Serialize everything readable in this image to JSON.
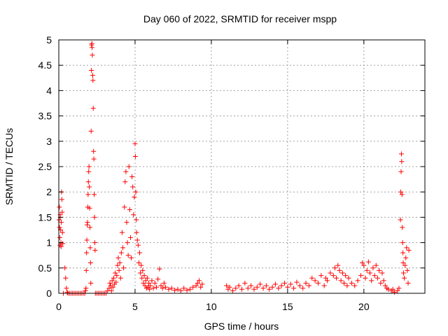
{
  "chart_data": {
    "type": "scatter",
    "title": "Day 060 of 2022, SRMTID for receiver mspp",
    "xlabel": "GPS time / hours",
    "ylabel": "SRMTID / TECUs",
    "xlim": [
      0,
      24
    ],
    "ylim": [
      0,
      5
    ],
    "x_ticks": [
      0,
      5,
      10,
      15,
      20
    ],
    "x_tick_labels": [
      "0",
      "5",
      "10",
      "15",
      "20"
    ],
    "y_ticks": [
      0,
      0.5,
      1,
      1.5,
      2,
      2.5,
      3,
      3.5,
      4,
      4.5,
      5
    ],
    "y_tick_labels": [
      "0",
      "0.5",
      "1",
      "1.5",
      "2",
      "2.5",
      "3",
      "3.5",
      "4",
      "4.5",
      "5"
    ],
    "grid": true,
    "marker": "plus",
    "color": "#ff0000",
    "series": [
      {
        "name": "SRMTID",
        "points": [
          [
            0.02,
            1.45
          ],
          [
            0.05,
            1.3
          ],
          [
            0.07,
            1.1
          ],
          [
            0.08,
            0.95
          ],
          [
            0.1,
            1.5
          ],
          [
            0.12,
            1.25
          ],
          [
            0.14,
            1.0
          ],
          [
            0.16,
            1.4
          ],
          [
            0.18,
            2.0
          ],
          [
            0.2,
            1.85
          ],
          [
            0.22,
            1.6
          ],
          [
            0.24,
            1.2
          ],
          [
            0.26,
            0.98
          ],
          [
            0.04,
            1.7
          ],
          [
            0.09,
            1.55
          ],
          [
            0.15,
            0.92
          ],
          [
            0.3,
            0.0
          ],
          [
            0.4,
            0.5
          ],
          [
            0.45,
            0.3
          ],
          [
            0.5,
            0.1
          ],
          [
            0.55,
            0.02
          ],
          [
            0.6,
            0.0
          ],
          [
            0.7,
            0.0
          ],
          [
            0.8,
            0.0
          ],
          [
            0.9,
            0.0
          ],
          [
            1.0,
            0.0
          ],
          [
            1.1,
            0.0
          ],
          [
            1.2,
            0.0
          ],
          [
            1.3,
            0.0
          ],
          [
            1.4,
            0.0
          ],
          [
            1.5,
            0.0
          ],
          [
            1.6,
            0.0
          ],
          [
            1.7,
            0.0
          ],
          [
            1.75,
            0.05
          ],
          [
            1.78,
            0.1
          ],
          [
            1.8,
            0.45
          ],
          [
            1.82,
            0.8
          ],
          [
            1.84,
            1.05
          ],
          [
            1.86,
            1.35
          ],
          [
            1.88,
            1.4
          ],
          [
            1.9,
            1.7
          ],
          [
            1.92,
            1.95
          ],
          [
            1.94,
            2.2
          ],
          [
            1.96,
            2.4
          ],
          [
            1.98,
            2.5
          ],
          [
            2.0,
            2.1
          ],
          [
            2.02,
            1.68
          ],
          [
            2.04,
            1.3
          ],
          [
            2.06,
            0.9
          ],
          [
            2.08,
            0.6
          ],
          [
            2.1,
            0.2
          ],
          [
            2.12,
            3.2
          ],
          [
            2.14,
            4.4
          ],
          [
            2.15,
            4.9
          ],
          [
            2.17,
            4.93
          ],
          [
            2.18,
            4.85
          ],
          [
            2.2,
            4.7
          ],
          [
            2.22,
            4.3
          ],
          [
            2.24,
            4.2
          ],
          [
            2.26,
            3.65
          ],
          [
            2.28,
            2.8
          ],
          [
            2.3,
            2.65
          ],
          [
            2.32,
            1.95
          ],
          [
            2.34,
            1.5
          ],
          [
            2.36,
            1.0
          ],
          [
            2.38,
            0.85
          ],
          [
            2.4,
            0.0
          ],
          [
            2.5,
            0.0
          ],
          [
            2.6,
            0.0
          ],
          [
            2.7,
            0.0
          ],
          [
            2.8,
            0.0
          ],
          [
            2.9,
            0.0
          ],
          [
            3.0,
            0.0
          ],
          [
            3.1,
            0.0
          ],
          [
            3.2,
            0.05
          ],
          [
            3.3,
            0.1
          ],
          [
            3.35,
            0.2
          ],
          [
            3.4,
            0.15
          ],
          [
            3.45,
            0.05
          ],
          [
            3.5,
            0.25
          ],
          [
            3.55,
            0.12
          ],
          [
            3.6,
            0.3
          ],
          [
            3.65,
            0.18
          ],
          [
            3.7,
            0.4
          ],
          [
            3.75,
            0.22
          ],
          [
            3.8,
            0.35
          ],
          [
            3.85,
            0.55
          ],
          [
            3.9,
            0.7
          ],
          [
            3.95,
            0.45
          ],
          [
            4.0,
            0.6
          ],
          [
            4.05,
            0.3
          ],
          [
            4.1,
            0.8
          ],
          [
            4.15,
            1.2
          ],
          [
            4.2,
            0.9
          ],
          [
            4.25,
            0.5
          ],
          [
            4.3,
            1.7
          ],
          [
            4.35,
            2.2
          ],
          [
            4.4,
            2.4
          ],
          [
            4.45,
            1.4
          ],
          [
            4.5,
            1.0
          ],
          [
            4.55,
            0.75
          ],
          [
            4.6,
            2.5
          ],
          [
            4.65,
            1.65
          ],
          [
            4.7,
            1.1
          ],
          [
            4.75,
            0.7
          ],
          [
            4.8,
            2.3
          ],
          [
            4.85,
            2.1
          ],
          [
            4.9,
            1.55
          ],
          [
            4.95,
            1.9
          ],
          [
            5.0,
            2.95
          ],
          [
            5.02,
            2.7
          ],
          [
            5.05,
            2.0
          ],
          [
            5.08,
            1.45
          ],
          [
            5.1,
            1.2
          ],
          [
            5.15,
            1.05
          ],
          [
            5.2,
            0.95
          ],
          [
            5.25,
            0.6
          ],
          [
            5.3,
            0.8
          ],
          [
            5.35,
            0.4
          ],
          [
            5.4,
            0.55
          ],
          [
            5.45,
            0.3
          ],
          [
            5.5,
            0.45
          ],
          [
            5.55,
            0.2
          ],
          [
            5.6,
            0.35
          ],
          [
            5.65,
            0.15
          ],
          [
            5.7,
            0.25
          ],
          [
            5.75,
            0.1
          ],
          [
            5.8,
            0.3
          ],
          [
            5.85,
            0.12
          ],
          [
            5.9,
            0.2
          ],
          [
            5.95,
            0.08
          ],
          [
            6.0,
            0.15
          ],
          [
            6.1,
            0.25
          ],
          [
            6.2,
            0.1
          ],
          [
            6.3,
            0.2
          ],
          [
            6.4,
            0.12
          ],
          [
            6.5,
            0.28
          ],
          [
            6.6,
            0.48
          ],
          [
            6.7,
            0.15
          ],
          [
            6.8,
            0.1
          ],
          [
            6.9,
            0.2
          ],
          [
            7.0,
            0.12
          ],
          [
            7.2,
            0.08
          ],
          [
            7.4,
            0.1
          ],
          [
            7.6,
            0.06
          ],
          [
            7.8,
            0.08
          ],
          [
            8.0,
            0.05
          ],
          [
            8.2,
            0.1
          ],
          [
            8.4,
            0.06
          ],
          [
            8.6,
            0.08
          ],
          [
            8.8,
            0.12
          ],
          [
            9.0,
            0.15
          ],
          [
            9.1,
            0.2
          ],
          [
            9.2,
            0.25
          ],
          [
            9.3,
            0.12
          ],
          [
            9.4,
            0.18
          ],
          [
            11.0,
            0.15
          ],
          [
            11.1,
            0.08
          ],
          [
            11.2,
            0.12
          ],
          [
            11.4,
            0.05
          ],
          [
            11.6,
            0.1
          ],
          [
            11.8,
            0.15
          ],
          [
            12.0,
            0.08
          ],
          [
            12.2,
            0.2
          ],
          [
            12.4,
            0.1
          ],
          [
            12.6,
            0.15
          ],
          [
            12.8,
            0.08
          ],
          [
            13.0,
            0.12
          ],
          [
            13.2,
            0.18
          ],
          [
            13.4,
            0.1
          ],
          [
            13.6,
            0.15
          ],
          [
            13.8,
            0.08
          ],
          [
            14.0,
            0.12
          ],
          [
            14.2,
            0.18
          ],
          [
            14.4,
            0.1
          ],
          [
            14.6,
            0.15
          ],
          [
            14.8,
            0.2
          ],
          [
            15.0,
            0.12
          ],
          [
            15.2,
            0.18
          ],
          [
            15.4,
            0.1
          ],
          [
            15.6,
            0.22
          ],
          [
            15.8,
            0.15
          ],
          [
            16.0,
            0.1
          ],
          [
            16.2,
            0.2
          ],
          [
            16.4,
            0.15
          ],
          [
            16.6,
            0.3
          ],
          [
            16.8,
            0.25
          ],
          [
            17.0,
            0.2
          ],
          [
            17.2,
            0.35
          ],
          [
            17.4,
            0.15
          ],
          [
            17.5,
            0.3
          ],
          [
            17.6,
            0.25
          ],
          [
            17.8,
            0.4
          ],
          [
            18.0,
            0.35
          ],
          [
            18.1,
            0.5
          ],
          [
            18.2,
            0.3
          ],
          [
            18.3,
            0.55
          ],
          [
            18.4,
            0.45
          ],
          [
            18.5,
            0.25
          ],
          [
            18.6,
            0.4
          ],
          [
            18.7,
            0.2
          ],
          [
            18.8,
            0.35
          ],
          [
            18.9,
            0.15
          ],
          [
            19.0,
            0.3
          ],
          [
            19.2,
            0.2
          ],
          [
            19.4,
            0.15
          ],
          [
            19.6,
            0.25
          ],
          [
            19.8,
            0.35
          ],
          [
            19.9,
            0.6
          ],
          [
            20.0,
            0.55
          ],
          [
            20.1,
            0.3
          ],
          [
            20.2,
            0.45
          ],
          [
            20.3,
            0.62
          ],
          [
            20.4,
            0.4
          ],
          [
            20.5,
            0.25
          ],
          [
            20.6,
            0.5
          ],
          [
            20.7,
            0.35
          ],
          [
            20.8,
            0.55
          ],
          [
            20.9,
            0.3
          ],
          [
            21.0,
            0.45
          ],
          [
            21.1,
            0.2
          ],
          [
            21.2,
            0.4
          ],
          [
            21.3,
            0.25
          ],
          [
            21.4,
            0.15
          ],
          [
            21.5,
            0.1
          ],
          [
            21.6,
            0.08
          ],
          [
            21.8,
            0.05
          ],
          [
            21.9,
            0.08
          ],
          [
            22.0,
            0.02
          ],
          [
            22.2,
            0.05
          ],
          [
            22.3,
            0.1
          ],
          [
            22.4,
            1.45
          ],
          [
            22.42,
            2.0
          ],
          [
            22.44,
            2.4
          ],
          [
            22.46,
            2.75
          ],
          [
            22.48,
            2.6
          ],
          [
            22.5,
            1.95
          ],
          [
            22.52,
            1.3
          ],
          [
            22.54,
            1.0
          ],
          [
            22.56,
            0.8
          ],
          [
            22.58,
            0.6
          ],
          [
            22.6,
            0.4
          ],
          [
            22.65,
            0.3
          ],
          [
            22.7,
            0.55
          ],
          [
            22.75,
            0.7
          ],
          [
            22.8,
            0.9
          ],
          [
            22.85,
            0.45
          ],
          [
            22.9,
            0.2
          ],
          [
            22.95,
            0.85
          ]
        ]
      }
    ]
  }
}
